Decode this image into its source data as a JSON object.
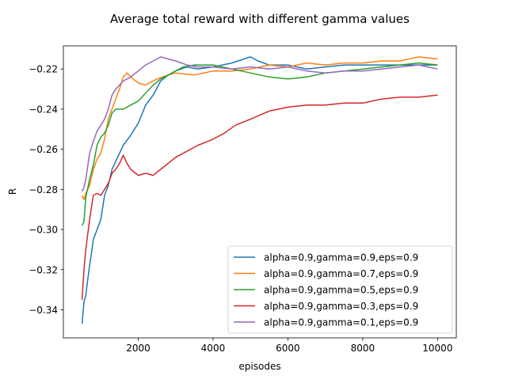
{
  "chart_data": {
    "type": "line",
    "title": "Average total reward with different gamma values",
    "xlabel": "episodes",
    "ylabel": "R",
    "xlim": [
      0,
      10500
    ],
    "ylim": [
      -0.354,
      -0.2085
    ],
    "xticks": [
      2000,
      4000,
      6000,
      8000,
      10000
    ],
    "xtick_labels": [
      "2000",
      "4000",
      "6000",
      "8000",
      "10000"
    ],
    "yticks": [
      -0.34,
      -0.32,
      -0.3,
      -0.28,
      -0.26,
      -0.24,
      -0.22
    ],
    "ytick_labels": [
      "−0.34",
      "−0.32",
      "−0.30",
      "−0.28",
      "−0.26",
      "−0.24",
      "−0.22"
    ],
    "grid": false,
    "legend_position": "lower-right",
    "series": [
      {
        "name": "alpha=0.9,gamma=0.9,eps=0.9",
        "color": "#1f77b4",
        "points": [
          [
            500,
            -0.347
          ],
          [
            550,
            -0.336
          ],
          [
            600,
            -0.333
          ],
          [
            650,
            -0.325
          ],
          [
            700,
            -0.318
          ],
          [
            750,
            -0.312
          ],
          [
            800,
            -0.305
          ],
          [
            900,
            -0.3
          ],
          [
            1000,
            -0.295
          ],
          [
            1100,
            -0.283
          ],
          [
            1200,
            -0.278
          ],
          [
            1300,
            -0.27
          ],
          [
            1400,
            -0.266
          ],
          [
            1500,
            -0.262
          ],
          [
            1600,
            -0.258
          ],
          [
            1800,
            -0.253
          ],
          [
            2000,
            -0.247
          ],
          [
            2200,
            -0.238
          ],
          [
            2400,
            -0.233
          ],
          [
            2600,
            -0.226
          ],
          [
            2800,
            -0.223
          ],
          [
            3000,
            -0.221
          ],
          [
            3300,
            -0.219
          ],
          [
            3600,
            -0.22
          ],
          [
            4000,
            -0.219
          ],
          [
            4500,
            -0.217
          ],
          [
            5000,
            -0.214
          ],
          [
            5200,
            -0.216
          ],
          [
            5500,
            -0.218
          ],
          [
            6000,
            -0.218
          ],
          [
            6500,
            -0.22
          ],
          [
            7000,
            -0.219
          ],
          [
            7500,
            -0.218
          ],
          [
            8000,
            -0.218
          ],
          [
            8500,
            -0.218
          ],
          [
            9000,
            -0.218
          ],
          [
            9500,
            -0.218
          ],
          [
            10000,
            -0.218
          ]
        ]
      },
      {
        "name": "alpha=0.9,gamma=0.7,eps=0.9",
        "color": "#ff7f0e",
        "points": [
          [
            500,
            -0.283
          ],
          [
            550,
            -0.285
          ],
          [
            600,
            -0.282
          ],
          [
            700,
            -0.278
          ],
          [
            800,
            -0.27
          ],
          [
            900,
            -0.265
          ],
          [
            1000,
            -0.262
          ],
          [
            1100,
            -0.255
          ],
          [
            1200,
            -0.245
          ],
          [
            1300,
            -0.24
          ],
          [
            1400,
            -0.235
          ],
          [
            1500,
            -0.23
          ],
          [
            1600,
            -0.224
          ],
          [
            1700,
            -0.222
          ],
          [
            1800,
            -0.224
          ],
          [
            2000,
            -0.227
          ],
          [
            2200,
            -0.228
          ],
          [
            2500,
            -0.225
          ],
          [
            2800,
            -0.223
          ],
          [
            3000,
            -0.222
          ],
          [
            3500,
            -0.223
          ],
          [
            4000,
            -0.221
          ],
          [
            4500,
            -0.221
          ],
          [
            5000,
            -0.22
          ],
          [
            5500,
            -0.218
          ],
          [
            6000,
            -0.219
          ],
          [
            6500,
            -0.217
          ],
          [
            7000,
            -0.218
          ],
          [
            7500,
            -0.217
          ],
          [
            8000,
            -0.217
          ],
          [
            8500,
            -0.216
          ],
          [
            9000,
            -0.216
          ],
          [
            9500,
            -0.214
          ],
          [
            10000,
            -0.215
          ]
        ]
      },
      {
        "name": "alpha=0.9,gamma=0.5,eps=0.9",
        "color": "#2ca02c",
        "points": [
          [
            500,
            -0.298
          ],
          [
            550,
            -0.296
          ],
          [
            600,
            -0.284
          ],
          [
            700,
            -0.275
          ],
          [
            800,
            -0.268
          ],
          [
            900,
            -0.258
          ],
          [
            1000,
            -0.254
          ],
          [
            1100,
            -0.252
          ],
          [
            1200,
            -0.248
          ],
          [
            1300,
            -0.242
          ],
          [
            1400,
            -0.24
          ],
          [
            1600,
            -0.24
          ],
          [
            1800,
            -0.238
          ],
          [
            2000,
            -0.236
          ],
          [
            2200,
            -0.232
          ],
          [
            2400,
            -0.228
          ],
          [
            2600,
            -0.225
          ],
          [
            2800,
            -0.223
          ],
          [
            3000,
            -0.221
          ],
          [
            3200,
            -0.219
          ],
          [
            3500,
            -0.218
          ],
          [
            4000,
            -0.218
          ],
          [
            4500,
            -0.22
          ],
          [
            5000,
            -0.222
          ],
          [
            5500,
            -0.224
          ],
          [
            6000,
            -0.225
          ],
          [
            6500,
            -0.224
          ],
          [
            7000,
            -0.222
          ],
          [
            7500,
            -0.221
          ],
          [
            8000,
            -0.22
          ],
          [
            8500,
            -0.219
          ],
          [
            9000,
            -0.218
          ],
          [
            9500,
            -0.217
          ],
          [
            10000,
            -0.218
          ]
        ]
      },
      {
        "name": "alpha=0.9,gamma=0.3,eps=0.9",
        "color": "#d62728",
        "points": [
          [
            500,
            -0.335
          ],
          [
            550,
            -0.32
          ],
          [
            600,
            -0.31
          ],
          [
            700,
            -0.295
          ],
          [
            800,
            -0.283
          ],
          [
            900,
            -0.282
          ],
          [
            1000,
            -0.283
          ],
          [
            1100,
            -0.28
          ],
          [
            1200,
            -0.277
          ],
          [
            1300,
            -0.272
          ],
          [
            1400,
            -0.27
          ],
          [
            1500,
            -0.267
          ],
          [
            1600,
            -0.263
          ],
          [
            1700,
            -0.267
          ],
          [
            1800,
            -0.27
          ],
          [
            2000,
            -0.273
          ],
          [
            2200,
            -0.272
          ],
          [
            2400,
            -0.273
          ],
          [
            2600,
            -0.27
          ],
          [
            2800,
            -0.267
          ],
          [
            3000,
            -0.264
          ],
          [
            3300,
            -0.261
          ],
          [
            3600,
            -0.258
          ],
          [
            4000,
            -0.255
          ],
          [
            4300,
            -0.252
          ],
          [
            4600,
            -0.248
          ],
          [
            5000,
            -0.245
          ],
          [
            5500,
            -0.241
          ],
          [
            6000,
            -0.239
          ],
          [
            6500,
            -0.238
          ],
          [
            7000,
            -0.238
          ],
          [
            7500,
            -0.237
          ],
          [
            8000,
            -0.237
          ],
          [
            8500,
            -0.235
          ],
          [
            9000,
            -0.234
          ],
          [
            9500,
            -0.234
          ],
          [
            10000,
            -0.233
          ]
        ]
      },
      {
        "name": "alpha=0.9,gamma=0.1,eps=0.9",
        "color": "#9467bd",
        "points": [
          [
            500,
            -0.281
          ],
          [
            550,
            -0.279
          ],
          [
            600,
            -0.275
          ],
          [
            700,
            -0.262
          ],
          [
            800,
            -0.256
          ],
          [
            900,
            -0.251
          ],
          [
            1000,
            -0.248
          ],
          [
            1100,
            -0.245
          ],
          [
            1200,
            -0.24
          ],
          [
            1300,
            -0.233
          ],
          [
            1400,
            -0.23
          ],
          [
            1500,
            -0.228
          ],
          [
            1600,
            -0.226
          ],
          [
            1800,
            -0.224
          ],
          [
            2000,
            -0.221
          ],
          [
            2200,
            -0.218
          ],
          [
            2400,
            -0.216
          ],
          [
            2600,
            -0.214
          ],
          [
            2800,
            -0.215
          ],
          [
            3000,
            -0.216
          ],
          [
            3300,
            -0.218
          ],
          [
            3600,
            -0.219
          ],
          [
            4000,
            -0.219
          ],
          [
            4500,
            -0.22
          ],
          [
            5000,
            -0.219
          ],
          [
            5500,
            -0.22
          ],
          [
            6000,
            -0.219
          ],
          [
            6500,
            -0.221
          ],
          [
            7000,
            -0.222
          ],
          [
            7500,
            -0.221
          ],
          [
            8000,
            -0.221
          ],
          [
            8500,
            -0.22
          ],
          [
            9000,
            -0.219
          ],
          [
            9500,
            -0.218
          ],
          [
            10000,
            -0.22
          ]
        ]
      }
    ]
  }
}
